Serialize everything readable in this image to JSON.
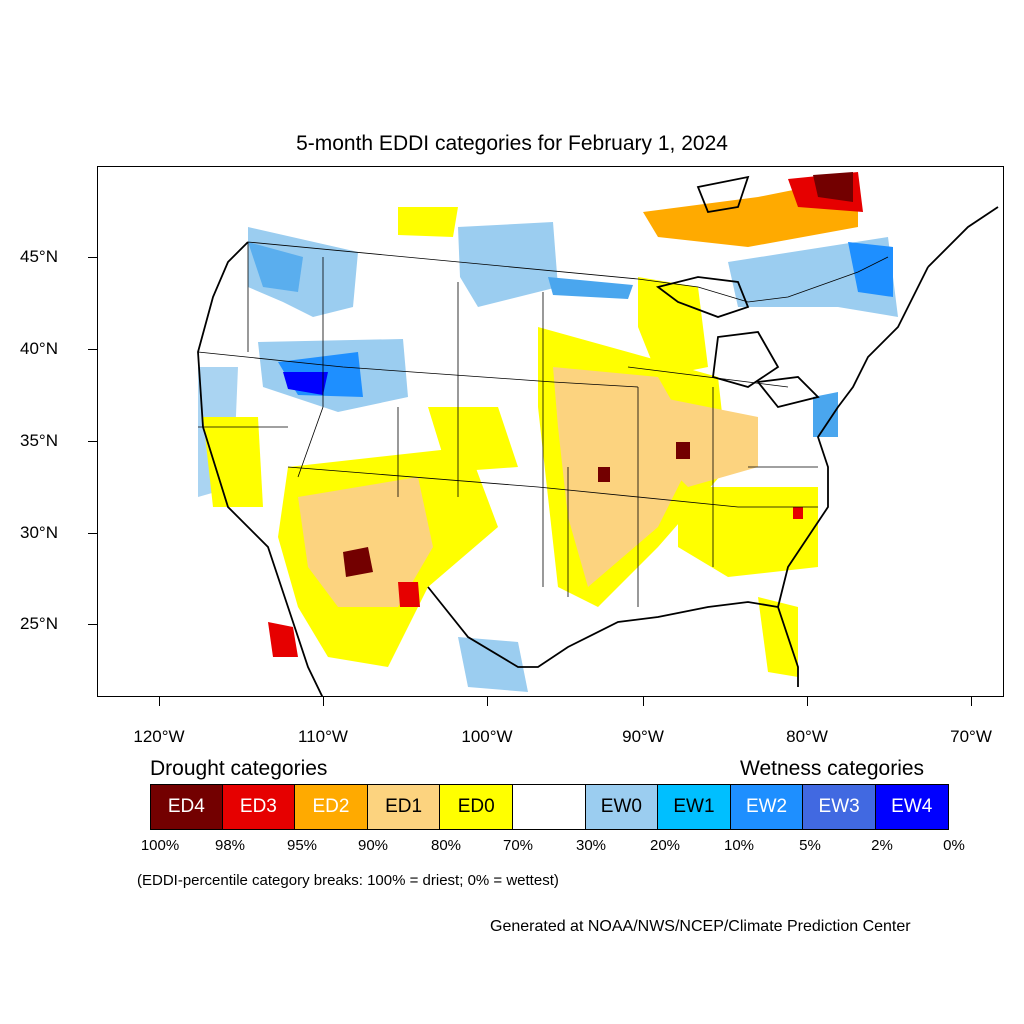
{
  "title": "5-month EDDI categories for February 1, 2024",
  "lat_labels": [
    "45°N",
    "40°N",
    "35°N",
    "30°N",
    "25°N"
  ],
  "lon_labels": [
    "120°W",
    "110°W",
    "100°W",
    "90°W",
    "80°W",
    "70°W"
  ],
  "legend": {
    "drought_heading": "Drought categories",
    "wetness_heading": "Wetness categories",
    "categories": [
      {
        "label": "ED4",
        "color": "#730000",
        "text_color": "#ffffff"
      },
      {
        "label": "ED3",
        "color": "#e60000",
        "text_color": "#ffffff"
      },
      {
        "label": "ED2",
        "color": "#ffaa00",
        "text_color": "#ffffff"
      },
      {
        "label": "ED1",
        "color": "#fcd37f",
        "text_color": "#000000"
      },
      {
        "label": "ED0",
        "color": "#ffff00",
        "text_color": "#000000"
      },
      {
        "label": "",
        "color": "#ffffff",
        "text_color": "#000000"
      },
      {
        "label": "EW0",
        "color": "#9bcdf0",
        "text_color": "#000000"
      },
      {
        "label": "EW1",
        "color": "#00bfff",
        "text_color": "#000000"
      },
      {
        "label": "EW2",
        "color": "#1e8fff",
        "text_color": "#ffffff"
      },
      {
        "label": "EW3",
        "color": "#4169e1",
        "text_color": "#ffffff"
      },
      {
        "label": "EW4",
        "color": "#0000ff",
        "text_color": "#ffffff"
      }
    ],
    "breaks": [
      "100%",
      "98%",
      "95%",
      "90%",
      "80%",
      "70%",
      "30%",
      "20%",
      "10%",
      "5%",
      "2%",
      "0%"
    ]
  },
  "note": "(EDDI-percentile category breaks: 100% = driest; 0% = wettest)",
  "credit": "Generated at NOAA/NWS/NCEP/Climate Prediction Center"
}
